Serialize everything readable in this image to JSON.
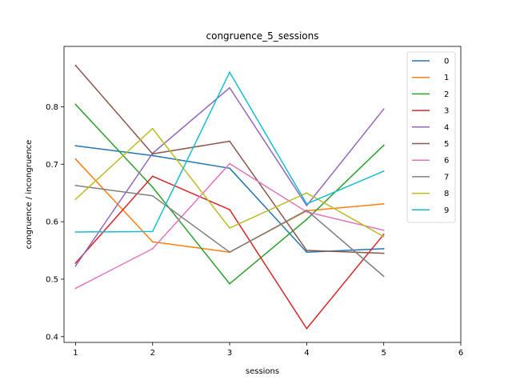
{
  "chart_data": {
    "type": "line",
    "title": "congruence_5_sessions",
    "xlabel": "sessions",
    "ylabel": "congruence / incongruence",
    "xlim": [
      0.85,
      6.0
    ],
    "ylim": [
      0.39,
      0.905
    ],
    "xticks": [
      1,
      2,
      3,
      4,
      5,
      6
    ],
    "yticks": [
      0.4,
      0.5,
      0.6,
      0.7,
      0.8
    ],
    "ytick_labels": [
      "0.4",
      "0.5",
      "0.6",
      "0.7",
      "0.8"
    ],
    "grid": false,
    "legend_position": "top-right",
    "x": [
      1,
      2,
      3,
      4,
      5
    ],
    "series": [
      {
        "name": "0",
        "color": "#1f77b4",
        "values": [
          0.732,
          0.715,
          0.693,
          0.547,
          0.553
        ]
      },
      {
        "name": "1",
        "color": "#ff7f0e",
        "values": [
          0.709,
          0.565,
          0.547,
          0.619,
          0.631
        ]
      },
      {
        "name": "2",
        "color": "#2ca02c",
        "values": [
          0.804,
          0.66,
          0.492,
          0.604,
          0.733
        ]
      },
      {
        "name": "3",
        "color": "#d62728",
        "values": [
          0.528,
          0.679,
          0.621,
          0.414,
          0.578
        ]
      },
      {
        "name": "4",
        "color": "#9467bd",
        "values": [
          0.523,
          0.719,
          0.833,
          0.628,
          0.796
        ]
      },
      {
        "name": "5",
        "color": "#8c564b",
        "values": [
          0.872,
          0.718,
          0.74,
          0.55,
          0.545
        ]
      },
      {
        "name": "6",
        "color": "#e377c2",
        "values": [
          0.484,
          0.553,
          0.701,
          0.617,
          0.585
        ]
      },
      {
        "name": "7",
        "color": "#7f7f7f",
        "values": [
          0.663,
          0.645,
          0.547,
          0.62,
          0.505
        ]
      },
      {
        "name": "8",
        "color": "#bcbd22",
        "values": [
          0.639,
          0.762,
          0.589,
          0.65,
          0.574
        ]
      },
      {
        "name": "9",
        "color": "#17becf",
        "values": [
          0.582,
          0.583,
          0.86,
          0.631,
          0.688
        ]
      }
    ]
  }
}
